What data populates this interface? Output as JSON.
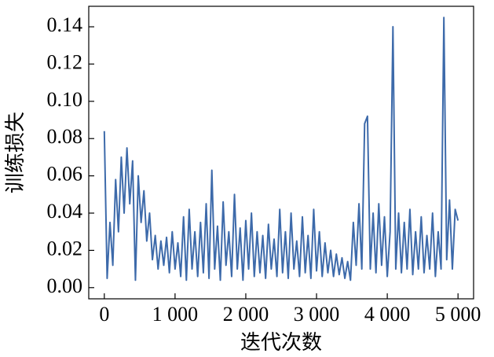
{
  "chart_data": {
    "type": "line",
    "xlabel": "迭代次数",
    "ylabel": "训练损失",
    "x": [
      0,
      40,
      80,
      120,
      160,
      200,
      240,
      280,
      320,
      360,
      400,
      440,
      480,
      520,
      560,
      600,
      640,
      680,
      720,
      760,
      800,
      840,
      880,
      920,
      960,
      1000,
      1040,
      1080,
      1120,
      1160,
      1200,
      1240,
      1280,
      1320,
      1360,
      1400,
      1440,
      1480,
      1520,
      1560,
      1600,
      1640,
      1680,
      1720,
      1760,
      1800,
      1840,
      1880,
      1920,
      1960,
      2000,
      2040,
      2080,
      2120,
      2160,
      2200,
      2240,
      2280,
      2320,
      2360,
      2400,
      2440,
      2480,
      2520,
      2560,
      2600,
      2640,
      2680,
      2720,
      2760,
      2800,
      2840,
      2880,
      2920,
      2960,
      3000,
      3040,
      3080,
      3120,
      3160,
      3200,
      3240,
      3280,
      3320,
      3360,
      3400,
      3440,
      3480,
      3520,
      3560,
      3600,
      3640,
      3680,
      3720,
      3760,
      3800,
      3840,
      3880,
      3920,
      3960,
      4000,
      4040,
      4080,
      4120,
      4160,
      4200,
      4240,
      4280,
      4320,
      4360,
      4400,
      4440,
      4480,
      4520,
      4560,
      4600,
      4640,
      4680,
      4720,
      4760,
      4800,
      4840,
      4880,
      4920,
      4960,
      5000
    ],
    "series": [
      {
        "color": "#3d6aaa",
        "values": [
          0.084,
          0.005,
          0.035,
          0.012,
          0.058,
          0.03,
          0.07,
          0.04,
          0.075,
          0.045,
          0.068,
          0.004,
          0.06,
          0.035,
          0.052,
          0.025,
          0.04,
          0.015,
          0.028,
          0.01,
          0.025,
          0.012,
          0.027,
          0.008,
          0.03,
          0.01,
          0.024,
          0.006,
          0.038,
          0.004,
          0.042,
          0.01,
          0.03,
          0.006,
          0.035,
          0.008,
          0.045,
          0.005,
          0.063,
          0.01,
          0.033,
          0.004,
          0.046,
          0.012,
          0.03,
          0.006,
          0.05,
          0.01,
          0.032,
          0.004,
          0.036,
          0.01,
          0.04,
          0.006,
          0.03,
          0.008,
          0.028,
          0.005,
          0.034,
          0.01,
          0.026,
          0.006,
          0.042,
          0.008,
          0.03,
          0.005,
          0.04,
          0.01,
          0.025,
          0.006,
          0.038,
          0.008,
          0.028,
          0.005,
          0.042,
          0.009,
          0.03,
          0.006,
          0.024,
          0.008,
          0.02,
          0.006,
          0.018,
          0.007,
          0.016,
          0.005,
          0.014,
          0.004,
          0.035,
          0.012,
          0.045,
          0.01,
          0.088,
          0.092,
          0.01,
          0.04,
          0.008,
          0.045,
          0.012,
          0.038,
          0.006,
          0.03,
          0.14,
          0.01,
          0.04,
          0.008,
          0.035,
          0.01,
          0.042,
          0.007,
          0.03,
          0.01,
          0.038,
          0.008,
          0.028,
          0.01,
          0.04,
          0.006,
          0.03,
          0.01,
          0.145,
          0.015,
          0.047,
          0.01,
          0.042,
          0.036
        ]
      }
    ],
    "xlim": [
      -220,
      5220
    ],
    "xticks": [
      0,
      {
        "value": 1000,
        "label": "1 000"
      },
      {
        "value": 2000,
        "label": "2 000"
      },
      {
        "value": 3000,
        "label": "3 000"
      },
      {
        "value": 4000,
        "label": "4 000"
      },
      {
        "value": 5000,
        "label": "5 000"
      }
    ],
    "ylim": [
      -0.006,
      0.151
    ],
    "yticks": [
      {
        "value": 0,
        "label": "0.00"
      },
      0.02,
      0.04,
      0.06,
      0.08,
      {
        "value": 0.1,
        "label": "0.10"
      },
      0.12,
      0.14
    ]
  }
}
